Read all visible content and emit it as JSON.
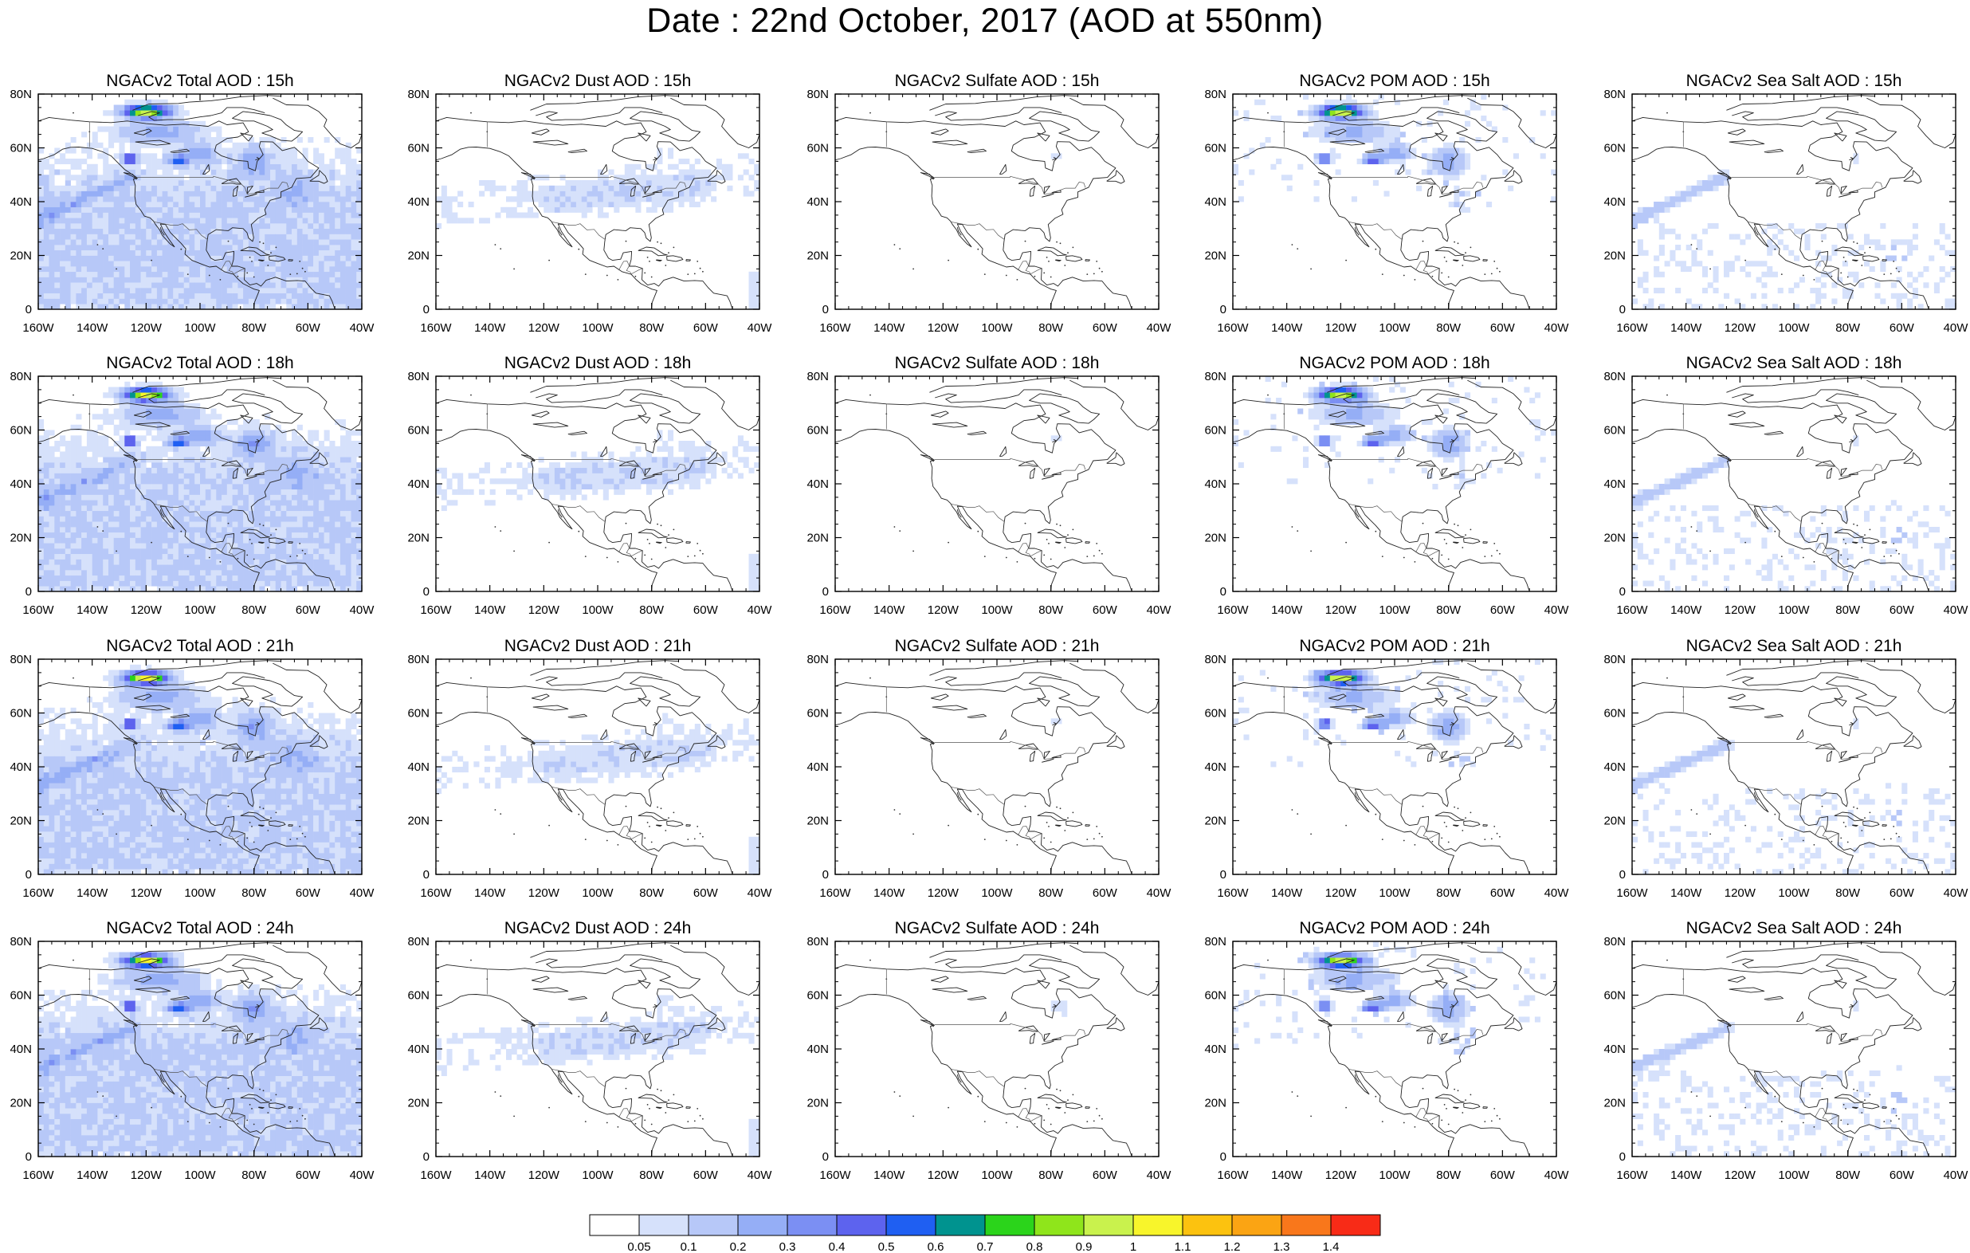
{
  "title": "Date : 22nd October, 2017 (AOD at 550nm)",
  "panels": [
    {
      "title": "NGACv2 Total AOD : 15h",
      "species": "total"
    },
    {
      "title": "NGACv2 Dust AOD : 15h",
      "species": "dust"
    },
    {
      "title": "NGACv2 Sulfate AOD : 15h",
      "species": "sulfate"
    },
    {
      "title": "NGACv2 POM AOD : 15h",
      "species": "pom"
    },
    {
      "title": "NGACv2 Sea Salt AOD : 15h",
      "species": "seasalt"
    },
    {
      "title": "NGACv2 Total AOD : 18h",
      "species": "total"
    },
    {
      "title": "NGACv2 Dust AOD : 18h",
      "species": "dust"
    },
    {
      "title": "NGACv2 Sulfate AOD : 18h",
      "species": "sulfate"
    },
    {
      "title": "NGACv2 POM AOD : 18h",
      "species": "pom"
    },
    {
      "title": "NGACv2 Sea Salt AOD : 18h",
      "species": "seasalt"
    },
    {
      "title": "NGACv2 Total AOD : 21h",
      "species": "total"
    },
    {
      "title": "NGACv2 Dust AOD : 21h",
      "species": "dust"
    },
    {
      "title": "NGACv2 Sulfate AOD : 21h",
      "species": "sulfate"
    },
    {
      "title": "NGACv2 POM AOD : 21h",
      "species": "pom"
    },
    {
      "title": "NGACv2 Sea Salt AOD : 21h",
      "species": "seasalt"
    },
    {
      "title": "NGACv2 Total AOD : 24h",
      "species": "total"
    },
    {
      "title": "NGACv2 Dust AOD : 24h",
      "species": "dust"
    },
    {
      "title": "NGACv2 Sulfate AOD : 24h",
      "species": "sulfate"
    },
    {
      "title": "NGACv2 POM AOD : 24h",
      "species": "pom"
    },
    {
      "title": "NGACv2 Sea Salt  AOD : 24h",
      "species": "seasalt"
    }
  ],
  "axes": {
    "lon_ticks": [
      "160W",
      "140W",
      "120W",
      "100W",
      "80W",
      "60W",
      "40W"
    ],
    "lat_ticks": [
      "0",
      "20N",
      "40N",
      "60N",
      "80N"
    ]
  },
  "colorbar": {
    "labels": [
      "0.05",
      "0.1",
      "0.2",
      "0.3",
      "0.4",
      "0.5",
      "0.6",
      "0.7",
      "0.8",
      "0.9",
      "1",
      "1.1",
      "1.2",
      "1.3",
      "1.4"
    ],
    "colors": [
      "#ffffff",
      "#d6e1fb",
      "#b7c8f8",
      "#95aef6",
      "#7b8ff3",
      "#5d63ee",
      "#1f5ff2",
      "#00938f",
      "#2bd41b",
      "#8fe51b",
      "#c9f24d",
      "#f8f52b",
      "#fcc20f",
      "#fba413",
      "#f9771b",
      "#f82b17"
    ]
  }
}
